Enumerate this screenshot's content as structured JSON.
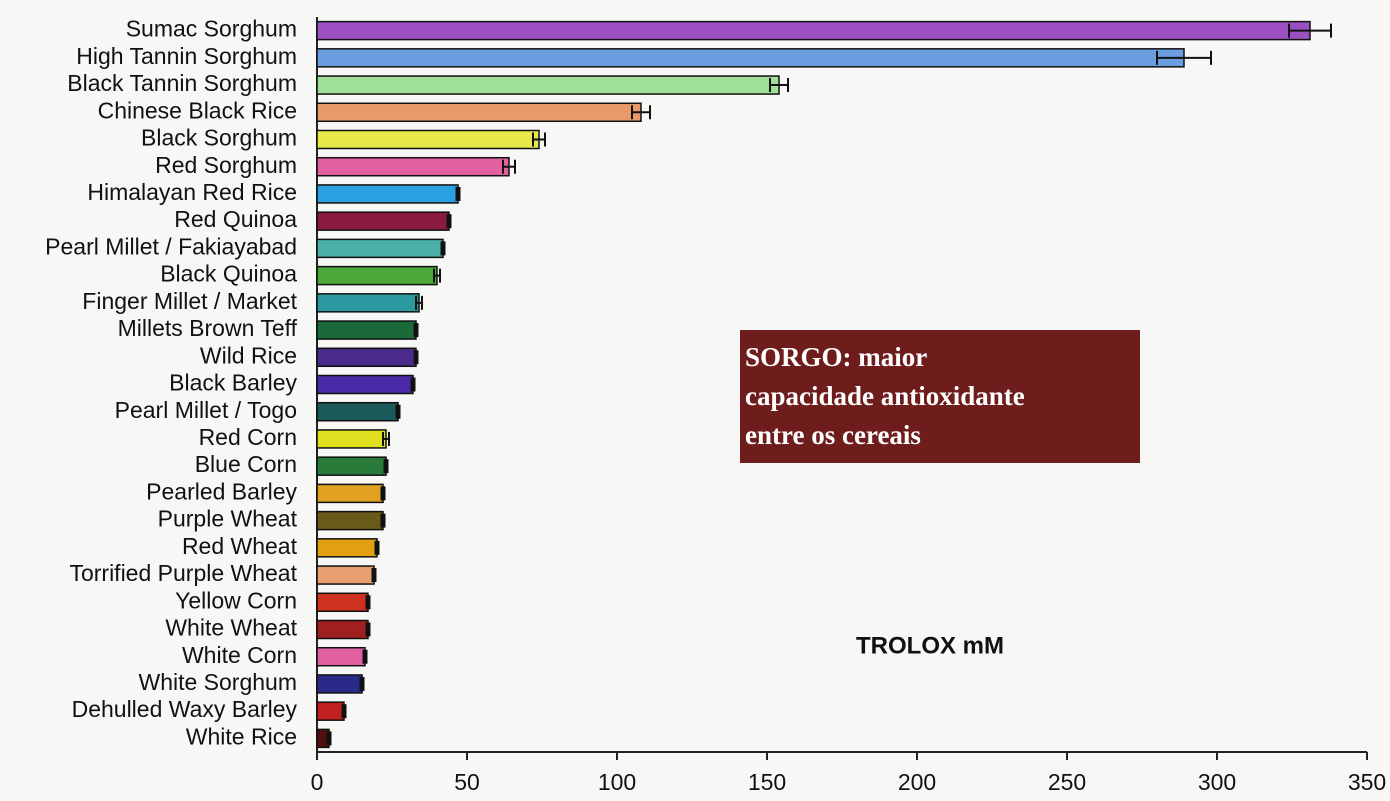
{
  "chart_data": {
    "type": "hbar",
    "x_label": "TROLOX mM",
    "annotation_lines": [
      "SORGO: maior",
      "capacidade antioxidante",
      "entre os cereais"
    ],
    "categories": [
      "Sumac Sorghum",
      "High Tannin Sorghum",
      "Black Tannin Sorghum",
      "Chinese Black Rice",
      "Black Sorghum",
      "Red Sorghum",
      "Himalayan Red Rice",
      "Red Quinoa",
      "Pearl Millet / Fakiayabad",
      "Black Quinoa",
      "Finger Millet / Market",
      "Millets Brown Teff",
      "Wild Rice",
      "Black Barley",
      "Pearl Millet / Togo",
      "Red Corn",
      "Blue Corn",
      "Pearled Barley",
      "Purple Wheat",
      "Red Wheat",
      "Torrified Purple Wheat",
      "Yellow Corn",
      "White Wheat",
      "White Corn",
      "White Sorghum",
      "Dehulled Waxy Barley",
      "White Rice"
    ],
    "values": [
      331,
      289,
      154,
      108,
      74,
      64,
      47,
      44,
      42,
      40,
      34,
      33,
      33,
      32,
      27,
      23,
      23,
      22,
      22,
      20,
      19,
      17,
      17,
      16,
      15,
      9,
      4
    ],
    "errors": [
      7,
      9,
      3,
      3,
      2,
      2,
      0.5,
      0.5,
      0.5,
      1,
      1,
      0.5,
      0.5,
      0.5,
      0.5,
      1,
      0.5,
      0.5,
      0.5,
      0.5,
      0.5,
      0.5,
      0.5,
      0.5,
      0.5,
      0.5,
      0.5
    ],
    "colors": [
      "#9b4fc0",
      "#6a9ee0",
      "#9ee09a",
      "#e89a68",
      "#e8e84a",
      "#e060a0",
      "#2aa0e0",
      "#8a1a40",
      "#4ab0a8",
      "#4aa83a",
      "#2a9aa0",
      "#1a6a3a",
      "#4a2a8a",
      "#4a2aa8",
      "#1a5a5a",
      "#e0e020",
      "#2a7a3a",
      "#e0a020",
      "#6a5a1a",
      "#e0a010",
      "#e8a070",
      "#d03020",
      "#a02020",
      "#e060a0",
      "#2a2a8a",
      "#c02020",
      "#501010"
    ],
    "xlim": [
      0,
      350
    ],
    "xticks": [
      0,
      50,
      100,
      150,
      200,
      250,
      300,
      350
    ]
  }
}
